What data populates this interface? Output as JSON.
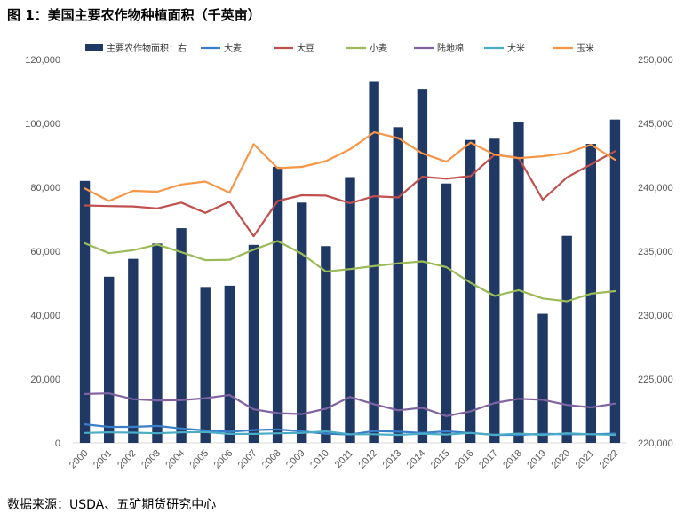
{
  "title": "图 1：美国主要农作物种植面积（千英亩）",
  "source": "数据来源：USDA、五矿期货研究中心",
  "chart_data": {
    "type": "bar+line",
    "categories": [
      "2000",
      "2001",
      "2002",
      "2003",
      "2004",
      "2005",
      "2006",
      "2007",
      "2008",
      "2009",
      "2010",
      "2011",
      "2012",
      "2013",
      "2014",
      "2015",
      "2016",
      "2017",
      "2018",
      "2019",
      "2020",
      "2021",
      "2022"
    ],
    "left_axis": {
      "min": 0,
      "max": 120000,
      "step": 20000,
      "tick_labels": [
        "0",
        "20,000",
        "40,000",
        "60,000",
        "80,000",
        "100,000",
        "120,000"
      ]
    },
    "right_axis": {
      "min": 220000,
      "max": 250000,
      "step": 5000,
      "tick_labels": [
        "220,000",
        "225,000",
        "230,000",
        "235,000",
        "240,000",
        "245,000",
        "250,000"
      ]
    },
    "bar_series": {
      "name": "主要农作物面积：右",
      "axis": "right",
      "color": "#1f3864",
      "values": [
        240500,
        233000,
        234400,
        235600,
        236800,
        232200,
        232300,
        235500,
        241600,
        238800,
        235400,
        240800,
        248300,
        244700,
        247700,
        240300,
        243700,
        243800,
        245100,
        230100,
        236200,
        243400,
        245300
      ]
    },
    "line_series": [
      {
        "name": "大麦",
        "color": "#3a7fc8",
        "values": [
          5800,
          5000,
          5000,
          5300,
          4500,
          3900,
          3500,
          4000,
          4200,
          3600,
          2900,
          2600,
          3700,
          3500,
          3100,
          3600,
          3100,
          2500,
          2500,
          2800,
          2700,
          2700,
          2900
        ]
      },
      {
        "name": "大豆",
        "color": "#c0504d",
        "values": [
          74300,
          74100,
          74000,
          73400,
          75200,
          72000,
          75500,
          64700,
          75700,
          77500,
          77400,
          75000,
          77200,
          76800,
          83300,
          82700,
          83500,
          90200,
          89200,
          76100,
          83100,
          87200,
          91300
        ]
      },
      {
        "name": "小麦",
        "color": "#9bbb59",
        "values": [
          62500,
          59400,
          60300,
          62100,
          59700,
          57200,
          57300,
          60500,
          63200,
          59200,
          53600,
          54400,
          55300,
          56200,
          56800,
          55000,
          50100,
          46000,
          47800,
          45200,
          44300,
          46700,
          47500
        ]
      },
      {
        "name": "陆地棉",
        "color": "#8064a2",
        "values": [
          15300,
          15500,
          13700,
          13300,
          13400,
          14000,
          15000,
          10500,
          9300,
          9000,
          10700,
          14400,
          12100,
          10200,
          11000,
          8400,
          9900,
          12500,
          13800,
          13500,
          11900,
          11100,
          12300
        ]
      },
      {
        "name": "大米",
        "color": "#4bacc6",
        "values": [
          3100,
          3300,
          3200,
          3000,
          3300,
          3400,
          2800,
          2800,
          3000,
          3100,
          3600,
          2700,
          2700,
          2500,
          2900,
          2600,
          3100,
          2500,
          2900,
          2500,
          3000,
          2700,
          2500
        ]
      },
      {
        "name": "玉米",
        "color": "#f79646",
        "values": [
          79600,
          75700,
          78900,
          78600,
          80900,
          81800,
          78300,
          93500,
          86000,
          86400,
          88200,
          91900,
          97200,
          95400,
          90600,
          88000,
          94000,
          90200,
          89100,
          89700,
          90700,
          93300,
          88600
        ]
      }
    ],
    "legend_position": "top",
    "grid": false
  }
}
